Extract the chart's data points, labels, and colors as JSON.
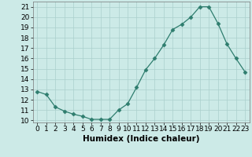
{
  "x": [
    0,
    1,
    2,
    3,
    4,
    5,
    6,
    7,
    8,
    9,
    10,
    11,
    12,
    13,
    14,
    15,
    16,
    17,
    18,
    19,
    20,
    21,
    22,
    23
  ],
  "y": [
    12.8,
    12.5,
    11.3,
    10.9,
    10.6,
    10.4,
    10.1,
    10.1,
    10.1,
    11.0,
    11.6,
    13.2,
    14.9,
    16.0,
    17.3,
    18.8,
    19.3,
    20.0,
    21.0,
    21.0,
    19.4,
    17.4,
    16.0,
    14.7
  ],
  "line_color": "#2e7d6e",
  "marker": "D",
  "marker_size": 2.5,
  "bg_color": "#cceae7",
  "grid_color": "#aacfcc",
  "xlabel": "Humidex (Indice chaleur)",
  "ylabel_ticks": [
    10,
    11,
    12,
    13,
    14,
    15,
    16,
    17,
    18,
    19,
    20,
    21
  ],
  "xlim": [
    -0.5,
    23.5
  ],
  "ylim": [
    9.8,
    21.5
  ],
  "xlabel_fontsize": 7.5,
  "tick_fontsize": 6.5
}
